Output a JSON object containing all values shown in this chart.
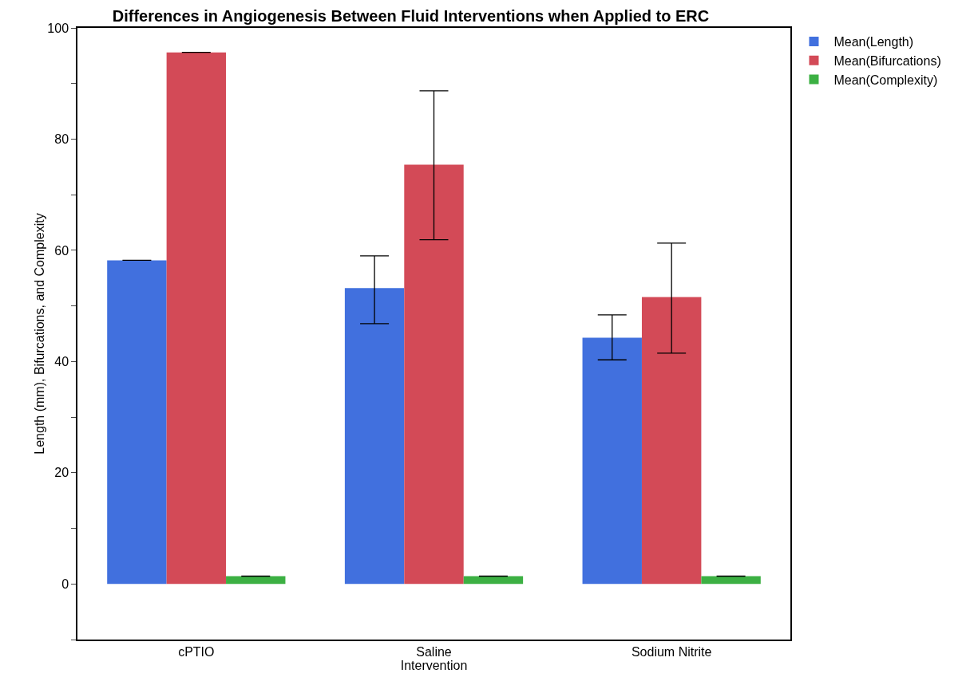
{
  "chart_data": {
    "type": "bar",
    "title": "Differences in Angiogenesis Between Fluid Interventions when Applied to ERC",
    "xlabel": "Intervention",
    "ylabel": "Length (mm), Bifurcations, and Complexity",
    "categories": [
      "cPTIO",
      "Saline",
      "Sodium Nitrite"
    ],
    "series": [
      {
        "name": "Mean(Length)",
        "color": "#4170de",
        "values": [
          58.2,
          53.2,
          44.3
        ],
        "errors": [
          0,
          [
            46.8,
            59.0
          ],
          [
            40.3,
            48.4
          ]
        ]
      },
      {
        "name": "Mean(Bifurcations)",
        "color": "#d34a57",
        "values": [
          95.6,
          75.4,
          51.6
        ],
        "errors": [
          0,
          [
            61.9,
            88.7
          ],
          [
            41.5,
            61.3
          ]
        ]
      },
      {
        "name": "Mean(Complexity)",
        "color": "#3cb043",
        "values": [
          1.4,
          1.4,
          1.4
        ],
        "errors": [
          0,
          0,
          0
        ]
      }
    ],
    "ylim": [
      -10,
      100
    ],
    "yticks": [
      {
        "value": -10,
        "label": null
      },
      0,
      {
        "value": 10,
        "label": null
      },
      20,
      {
        "value": 30,
        "label": null
      },
      40,
      {
        "value": 50,
        "label": null
      },
      60,
      {
        "value": 70,
        "label": null
      },
      80,
      {
        "value": 90,
        "label": null
      },
      100
    ],
    "grid": false,
    "legend": "top right"
  }
}
